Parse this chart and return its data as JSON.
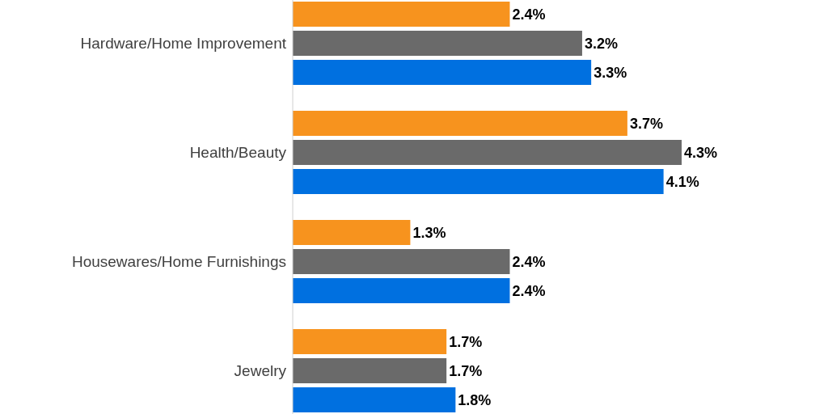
{
  "chart_data": {
    "type": "bar",
    "orientation": "horizontal",
    "categories": [
      "Hardware/Home Improvement",
      "Health/Beauty",
      "Housewares/Home Furnishings",
      "Jewelry"
    ],
    "series": [
      {
        "color": "#f7931e",
        "values": [
          2.4,
          3.7,
          1.3,
          1.7
        ],
        "value_labels": [
          "2.4%",
          "3.7%",
          "1.3%",
          "1.7%"
        ]
      },
      {
        "color": "#6a6a6a",
        "values": [
          3.2,
          4.3,
          2.4,
          1.7
        ],
        "value_labels": [
          "3.2%",
          "4.3%",
          "2.4%",
          "1.7%"
        ]
      },
      {
        "color": "#0070e0",
        "values": [
          3.3,
          4.1,
          2.4,
          1.8
        ],
        "value_labels": [
          "3.3%",
          "4.1%",
          "2.4%",
          "1.8%"
        ]
      }
    ]
  }
}
